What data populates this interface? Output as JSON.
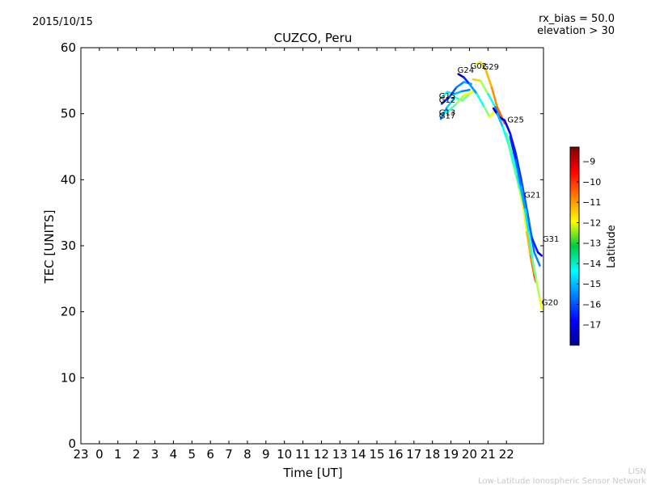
{
  "chart_data": {
    "type": "line",
    "title": "CUZCO, Peru",
    "date": "2015/10/15",
    "rx_bias": "rx_bias = 50.0",
    "elevation": "elevation > 30",
    "xlabel": "Time [UT]",
    "ylabel": "TEC [UNITS]",
    "xlim": [
      -1,
      24
    ],
    "ylim": [
      0,
      60
    ],
    "x_ticks": [
      -1,
      0,
      1,
      2,
      3,
      4,
      5,
      6,
      7,
      8,
      9,
      10,
      11,
      12,
      13,
      14,
      15,
      16,
      17,
      18,
      19,
      20,
      21,
      22
    ],
    "x_tick_labels": [
      "23",
      "0",
      "1",
      "2",
      "3",
      "4",
      "5",
      "6",
      "7",
      "8",
      "9",
      "10",
      "11",
      "12",
      "13",
      "14",
      "15",
      "16",
      "17",
      "18",
      "19",
      "20",
      "21",
      "22"
    ],
    "y_ticks": [
      0,
      10,
      20,
      30,
      40,
      50,
      60
    ],
    "y_tick_labels": [
      "0",
      "10",
      "20",
      "30",
      "40",
      "50",
      "60"
    ],
    "colorbar": {
      "label": "Latitude",
      "min": -18,
      "max": -8.3,
      "ticks": [
        -9,
        -10,
        -11,
        -12,
        -13,
        -14,
        -15,
        -16,
        -17
      ],
      "tick_labels": [
        "−9",
        "−10",
        "−11",
        "−12",
        "−13",
        "−14",
        "−15",
        "−16",
        "−17"
      ]
    },
    "series": [
      {
        "name": "G17",
        "lat_start": -15.5,
        "lat_end": -12.5,
        "points": [
          [
            18.45,
            49.2
          ],
          [
            18.8,
            51.0
          ],
          [
            19.2,
            52.5
          ],
          [
            19.6,
            52.0
          ],
          [
            20.0,
            53.0
          ],
          [
            20.3,
            53.5
          ]
        ]
      },
      {
        "name": "G13",
        "lat_start": -14.5,
        "lat_end": -12.0,
        "points": [
          [
            18.5,
            50.0
          ],
          [
            18.9,
            50.5
          ],
          [
            19.3,
            51.5
          ],
          [
            19.7,
            52.8
          ],
          [
            20.1,
            53.3
          ]
        ]
      },
      {
        "name": "G15",
        "lat_start": -14.0,
        "lat_end": -15.5,
        "points": [
          [
            18.5,
            52.5
          ],
          [
            18.8,
            53.3
          ],
          [
            19.2,
            53.0
          ],
          [
            19.6,
            53.4
          ],
          [
            20.0,
            53.6
          ]
        ]
      },
      {
        "name": "G12",
        "lat_start": -16.5,
        "lat_end": -15.0,
        "points": [
          [
            18.5,
            51.5
          ],
          [
            18.9,
            52.5
          ],
          [
            19.3,
            54.0
          ],
          [
            19.7,
            54.8
          ],
          [
            20.1,
            54.5
          ]
        ]
      },
      {
        "name": "G24",
        "lat_start": -17.5,
        "lat_end": -12.0,
        "points": [
          [
            19.4,
            56.0
          ],
          [
            19.7,
            55.5
          ],
          [
            20.0,
            54.5
          ],
          [
            20.4,
            53.0
          ],
          [
            20.8,
            51.0
          ],
          [
            21.1,
            49.5
          ],
          [
            21.4,
            50.5
          ]
        ]
      },
      {
        "name": "G02",
        "lat_start": -11.5,
        "lat_end": -15.5,
        "points": [
          [
            20.2,
            55.2
          ],
          [
            20.6,
            55.0
          ],
          [
            21.0,
            53.0
          ],
          [
            21.4,
            51.0
          ],
          [
            21.8,
            49.0
          ]
        ]
      },
      {
        "name": "G29",
        "lat_start": -12.0,
        "lat_end": -10.5,
        "points": [
          [
            20.3,
            57.5
          ],
          [
            20.6,
            57.8
          ],
          [
            20.9,
            56.5
          ],
          [
            21.2,
            54.0
          ],
          [
            21.5,
            51.0
          ],
          [
            21.9,
            48.5
          ]
        ]
      },
      {
        "name": "G25",
        "lat_start": -17.2,
        "lat_end": -15.5,
        "points": [
          [
            21.3,
            50.8
          ],
          [
            21.6,
            49.5
          ],
          [
            21.9,
            49.0
          ],
          [
            22.2,
            47.0
          ],
          [
            22.5,
            44.0
          ],
          [
            22.8,
            40.0
          ],
          [
            23.0,
            37.0
          ],
          [
            23.2,
            34.0
          ],
          [
            23.5,
            29.0
          ],
          [
            23.8,
            27.0
          ]
        ]
      },
      {
        "name": "G21",
        "lat_start": -15.0,
        "lat_end": -10.0,
        "points": [
          [
            21.5,
            50.0
          ],
          [
            21.8,
            48.0
          ],
          [
            22.1,
            45.5
          ],
          [
            22.4,
            42.0
          ],
          [
            22.7,
            38.5
          ],
          [
            22.9,
            36.0
          ],
          [
            23.1,
            32.0
          ],
          [
            23.3,
            28.5
          ],
          [
            23.5,
            25.5
          ],
          [
            23.6,
            24.5
          ]
        ]
      },
      {
        "name": "G31",
        "lat_start": -13.5,
        "lat_end": -17.0,
        "points": [
          [
            22.0,
            47.0
          ],
          [
            22.3,
            44.0
          ],
          [
            22.6,
            40.5
          ],
          [
            22.9,
            37.0
          ],
          [
            23.1,
            34.5
          ],
          [
            23.4,
            31.0
          ],
          [
            23.7,
            29.0
          ],
          [
            23.9,
            28.5
          ]
        ]
      },
      {
        "name": "G20",
        "lat_start": -16.5,
        "lat_end": -12.0,
        "points": [
          [
            22.2,
            46.5
          ],
          [
            22.5,
            43.0
          ],
          [
            22.8,
            39.0
          ],
          [
            23.0,
            35.5
          ],
          [
            23.2,
            32.0
          ],
          [
            23.4,
            28.0
          ],
          [
            23.6,
            25.0
          ],
          [
            23.8,
            22.0
          ],
          [
            23.9,
            20.5
          ]
        ]
      }
    ],
    "labels": [
      {
        "text": "G24",
        "x": 19.35,
        "y": 56.2
      },
      {
        "text": "G02",
        "x": 20.05,
        "y": 56.8
      },
      {
        "text": "G29",
        "x": 20.7,
        "y": 56.7
      },
      {
        "text": "G15",
        "x": 18.35,
        "y": 52.3
      },
      {
        "text": "G12",
        "x": 18.35,
        "y": 51.7
      },
      {
        "text": "G13",
        "x": 18.35,
        "y": 49.8
      },
      {
        "text": "G17",
        "x": 18.35,
        "y": 49.3
      },
      {
        "text": "G25",
        "x": 22.05,
        "y": 48.7
      },
      {
        "text": "G21",
        "x": 22.95,
        "y": 37.3
      },
      {
        "text": "G31",
        "x": 23.95,
        "y": 30.6
      },
      {
        "text": "G20",
        "x": 23.9,
        "y": 21.0
      }
    ]
  },
  "footer": {
    "line1": "LISN",
    "line2": "Low-Latitude Ionospheric Sensor Network"
  }
}
